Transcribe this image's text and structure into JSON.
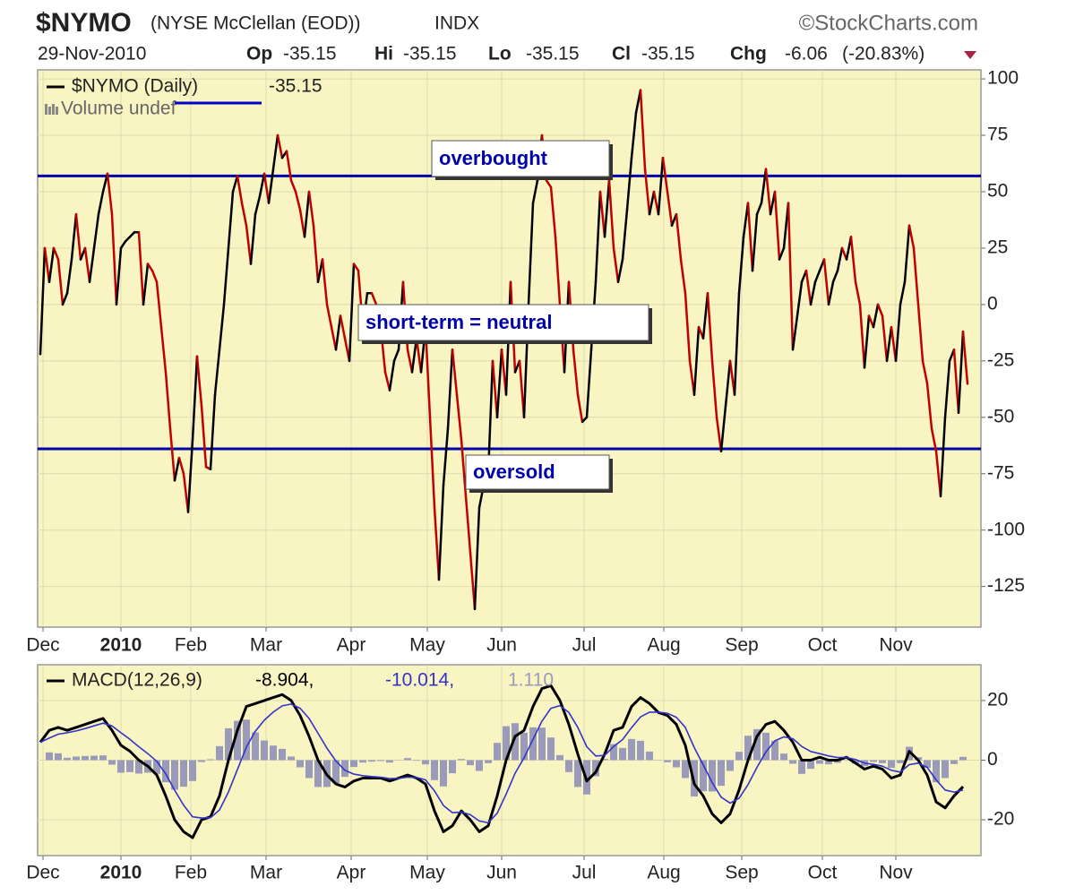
{
  "header": {
    "symbol": "$NYMO",
    "name": "(NYSE McClellan (EOD))",
    "exchange": "INDX",
    "source": "©StockCharts.com",
    "date": "29-Nov-2010",
    "quote": [
      {
        "label": "Op",
        "value": -35.15
      },
      {
        "label": "Hi",
        "value": -35.15
      },
      {
        "label": "Lo",
        "value": -35.15
      },
      {
        "label": "Cl",
        "value": -35.15
      },
      {
        "label": "Chg",
        "value": -6.06,
        "note": "(-20.83%)"
      }
    ]
  },
  "chart_data": [
    {
      "type": "line",
      "legend": {
        "label": "$NYMO (Daily)",
        "value": -35.15,
        "note": "Volume undef"
      },
      "up_color": "#000000",
      "down_color": "#c00000",
      "background": "#f9f5c2",
      "grid": true,
      "grid_color": "#dedab2",
      "hlines": [
        57,
        -64
      ],
      "hline_color": "#0000aa",
      "annotations": [
        "overbought",
        "short-term = neutral",
        "oversold"
      ],
      "values": [
        -22,
        25,
        10,
        25,
        20,
        0,
        5,
        20,
        40,
        20,
        25,
        10,
        25,
        40,
        50,
        58,
        40,
        0,
        25,
        28,
        30,
        32,
        32,
        0,
        18,
        15,
        10,
        -10,
        -30,
        -55,
        -78,
        -68,
        -75,
        -92,
        -60,
        -23,
        -45,
        -72,
        -73,
        -40,
        -20,
        0,
        25,
        50,
        57,
        45,
        35,
        18,
        40,
        48,
        58,
        45,
        60,
        75,
        65,
        68,
        55,
        50,
        42,
        30,
        50,
        35,
        10,
        20,
        0,
        -10,
        -20,
        -5,
        -15,
        -25,
        18,
        15,
        -10,
        5,
        5,
        0,
        -10,
        -30,
        -38,
        -25,
        -20,
        10,
        -20,
        -30,
        -15,
        -30,
        -10,
        -50,
        -90,
        -122,
        -80,
        -55,
        -20,
        -40,
        -60,
        -85,
        -110,
        -135,
        -90,
        -80,
        -75,
        -25,
        -50,
        -20,
        -40,
        10,
        -30,
        -25,
        -50,
        0,
        45,
        55,
        75,
        55,
        52,
        30,
        0,
        -30,
        10,
        -20,
        -40,
        -52,
        -50,
        -20,
        10,
        50,
        30,
        55,
        25,
        10,
        20,
        42,
        65,
        85,
        95,
        60,
        40,
        50,
        40,
        65,
        50,
        35,
        40,
        20,
        5,
        -25,
        -40,
        -10,
        -15,
        5,
        -25,
        -50,
        -65,
        -45,
        -25,
        -40,
        5,
        30,
        45,
        15,
        40,
        45,
        60,
        40,
        50,
        20,
        25,
        45,
        -20,
        -5,
        10,
        15,
        0,
        10,
        15,
        20,
        0,
        10,
        15,
        25,
        20,
        30,
        10,
        0,
        -28,
        -5,
        -10,
        0,
        -5,
        -25,
        -10,
        -25,
        0,
        10,
        35,
        25,
        0,
        -25,
        -35,
        -55,
        -65,
        -85,
        -50,
        -25,
        -20,
        -48,
        -12,
        -35.15
      ],
      "xlim": [
        -0.6,
        210
      ],
      "xticks": [
        {
          "value": 0.6,
          "label": "Dec"
        },
        {
          "value": 18,
          "label": "2010"
        },
        {
          "value": 33.6,
          "label": "Feb"
        },
        {
          "value": 50.4,
          "label": "Mar"
        },
        {
          "value": 69.4,
          "label": "Apr"
        },
        {
          "value": 86.4,
          "label": "May"
        },
        {
          "value": 103,
          "label": "Jun"
        },
        {
          "value": 121.4,
          "label": "Jul"
        },
        {
          "value": 139.2,
          "label": "Aug"
        },
        {
          "value": 156.6,
          "label": "Sep"
        },
        {
          "value": 174.6,
          "label": "Oct"
        },
        {
          "value": 191,
          "label": "Nov"
        }
      ],
      "ylim": [
        -143,
        104
      ],
      "yticks": [
        100,
        75,
        50,
        25,
        0,
        -25,
        -50,
        -75,
        -100,
        -125
      ]
    },
    {
      "type": "macd",
      "legend": {
        "label": "MACD(12,26,9)",
        "items": [
          "-8.904,",
          "-10.014,",
          "1.110"
        ]
      },
      "background": "#f9f5c2",
      "grid": true,
      "grid_color": "#dedab2",
      "series": [
        {
          "color": "#000000",
          "values": [
            6,
            10,
            11,
            10,
            11,
            12,
            13,
            14,
            10,
            5,
            3,
            0,
            -2,
            -5,
            -12,
            -20,
            -24,
            -26,
            -20,
            -19,
            -12,
            0,
            10,
            18,
            19,
            20,
            21,
            22,
            20,
            15,
            8,
            0,
            -5,
            -8,
            -9,
            -7,
            -6,
            -6,
            -6,
            -7,
            -6,
            -5,
            -6,
            -8,
            -17,
            -24,
            -22,
            -17,
            -20,
            -24,
            -22,
            -12,
            0,
            8,
            10,
            18,
            24,
            25,
            20,
            12,
            2,
            -7,
            -4,
            2,
            10,
            11,
            18,
            21,
            19,
            16,
            15,
            12,
            5,
            -8,
            -12,
            -18,
            -21,
            -18,
            -10,
            0,
            8,
            12,
            13,
            10,
            6,
            0,
            0,
            1,
            0,
            0,
            1,
            -1,
            -3,
            -2,
            -3,
            -6,
            -5,
            3,
            0,
            -5,
            -14,
            -16,
            -12,
            -8.904
          ]
        },
        {
          "color": "#3333cc",
          "values": [
            6,
            7.4,
            8.7,
            9.2,
            9.8,
            10.6,
            11.5,
            12.4,
            11.5,
            9.2,
            7,
            4.5,
            2.2,
            -0.4,
            -4.6,
            -10.1,
            -15.1,
            -19,
            -19.4,
            -19.3,
            -16.7,
            -10.7,
            -3.2,
            4.4,
            9.7,
            13.4,
            16.1,
            18.2,
            18.8,
            17.4,
            14,
            9,
            4,
            -0.3,
            -3.4,
            -4.7,
            -5.2,
            -5.5,
            -5.7,
            -6.2,
            -6.1,
            -5.7,
            -5.8,
            -6.6,
            -10.3,
            -15.2,
            -17.6,
            -17.4,
            -18.3,
            -20.4,
            -21,
            -17.8,
            -11.4,
            -4.4,
            0.8,
            7,
            13.1,
            17.4,
            18.3,
            16,
            11,
            4.5,
            1.4,
            1.6,
            4.6,
            6.9,
            10.9,
            14.5,
            16.1,
            16.1,
            15.7,
            14.4,
            11,
            4.2,
            -1.6,
            -7.5,
            -12.4,
            -14.4,
            -12.8,
            -8.2,
            -2.4,
            2.8,
            6.5,
            7.8,
            7.2,
            4.6,
            2.9,
            2.2,
            1.4,
            0.9,
            0.9,
            0.2,
            -1,
            -1.4,
            -2,
            -3.4,
            -4,
            -1.5,
            -1,
            -2.4,
            -6.6,
            -10,
            -10.7,
            -10.014
          ]
        },
        {
          "color": "#9a9abb",
          "style": "bar",
          "values": [
            0,
            2.6,
            2.3,
            0.8,
            1.2,
            1.4,
            1.5,
            1.6,
            -1.5,
            -4.2,
            -4,
            -4.5,
            -4.2,
            -4.6,
            -7.4,
            -9.9,
            -8.9,
            -7,
            -0.6,
            0.3,
            4.7,
            10.7,
            13.2,
            13.6,
            9.3,
            6.6,
            4.9,
            3.8,
            1.2,
            -2.4,
            -6,
            -9,
            -9,
            -7.7,
            -5.6,
            -2.3,
            -0.8,
            -0.5,
            -0.3,
            -0.8,
            0.1,
            0.7,
            -0.2,
            -1.4,
            -6.7,
            -8.8,
            -4.4,
            0.4,
            -1.7,
            -3.6,
            -1,
            5.8,
            11.4,
            12.4,
            9.2,
            11,
            10.9,
            7.6,
            1.7,
            -4,
            -9,
            -11.5,
            -5.4,
            0.4,
            5.4,
            4.1,
            7.1,
            6.5,
            2.9,
            -0.1,
            -0.7,
            -2.4,
            -6,
            -12.2,
            -10.4,
            -10.5,
            -8.6,
            -3.6,
            2.8,
            8.2,
            10.4,
            9.2,
            6.5,
            2.2,
            -1.2,
            -4.6,
            -2.9,
            -1.2,
            -1.4,
            -0.9,
            0.1,
            -1.2,
            -2,
            -0.6,
            -1,
            -2.6,
            -1,
            4.5,
            1,
            -2.6,
            -7.4,
            -6,
            -1.3,
            1.11
          ]
        }
      ],
      "xlim": [
        -0.3,
        105
      ],
      "xticks": [
        {
          "value": 0.3,
          "label": "Dec"
        },
        {
          "value": 9,
          "label": "2010"
        },
        {
          "value": 16.8,
          "label": "Feb"
        },
        {
          "value": 25.2,
          "label": "Mar"
        },
        {
          "value": 34.7,
          "label": "Apr"
        },
        {
          "value": 43.2,
          "label": "May"
        },
        {
          "value": 51.5,
          "label": "Jun"
        },
        {
          "value": 60.7,
          "label": "Jul"
        },
        {
          "value": 69.6,
          "label": "Aug"
        },
        {
          "value": 78.3,
          "label": "Sep"
        },
        {
          "value": 87.3,
          "label": "Oct"
        },
        {
          "value": 95.5,
          "label": "Nov"
        }
      ],
      "ylim": [
        -32,
        32
      ],
      "yticks": [
        20,
        0,
        -20
      ]
    }
  ]
}
